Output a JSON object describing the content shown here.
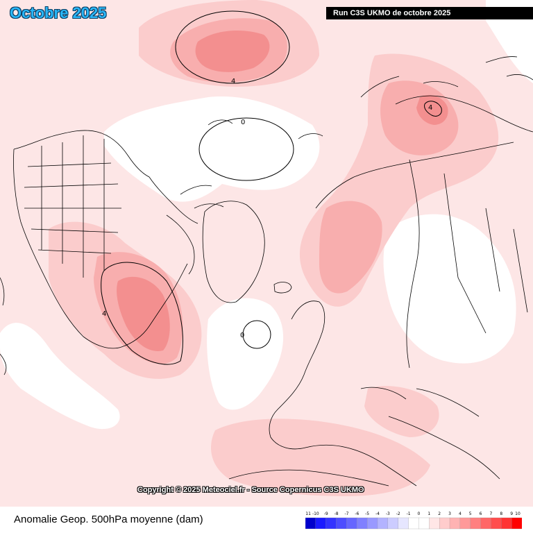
{
  "header": {
    "title": "Octobre 2025",
    "run_label": "Run C3S UKMO de octobre 2025"
  },
  "footer": {
    "copyright": "Copyright © 2025 Meteociel.fr - Source Copernicus C3S UKMO",
    "field_label": "Anomalie Geop. 500hPa moyenne (dam)"
  },
  "colors": {
    "level_0_1": "#ffffff",
    "level_1_2": "#fde6e6",
    "level_2_3": "#fbcccc",
    "level_3_4": "#f8aeae",
    "level_4_5": "#f38f8f",
    "coast": "#000000"
  },
  "legend": {
    "ticks": [
      "-11",
      "-10",
      "-9",
      "-8",
      "-7",
      "-6",
      "-5",
      "-4",
      "-3",
      "-2",
      "-1",
      "0",
      "1",
      "2",
      "3",
      "4",
      "5",
      "6",
      "7",
      "8",
      "9",
      "10"
    ],
    "colors": [
      "#0000cc",
      "#1a1aff",
      "#3333ff",
      "#4d4dff",
      "#6666ff",
      "#8080ff",
      "#9999ff",
      "#b3b3ff",
      "#ccccff",
      "#e6e6ff",
      "#ffffff",
      "#ffffff",
      "#ffe6e6",
      "#ffcccc",
      "#ffb3b3",
      "#ff9999",
      "#ff8080",
      "#ff6666",
      "#ff4d4d",
      "#ff3333",
      "#ff0000"
    ]
  },
  "contour_labels": {
    "arctic_high": "4",
    "siberia": "4",
    "zero_north": "0",
    "zero_atlantic": "0",
    "canada": "4"
  }
}
